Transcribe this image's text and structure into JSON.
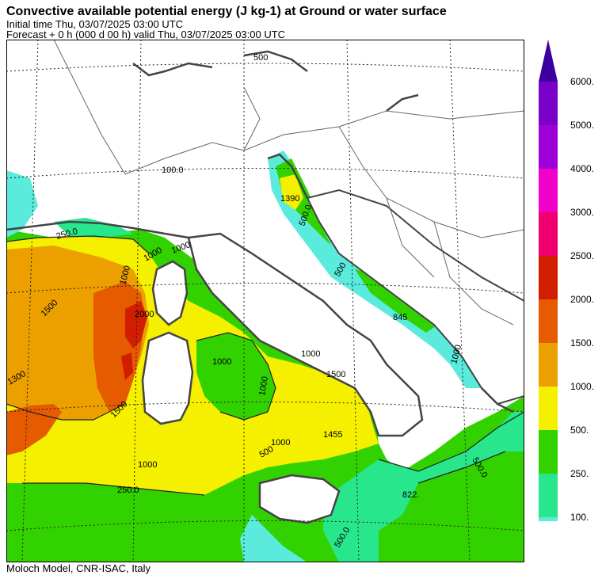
{
  "header": {
    "title": "Convective available potential energy (J kg-1) at Ground or water surface",
    "initial": "Initial time  Thu, 03/07/2025  03:00 UTC",
    "forecast": "Forecast +   0 h  (000 d 00 h)  valid Thu, 03/07/2025 03:00 UTC"
  },
  "footer": "Moloch Model, CNR-ISAC, Italy",
  "legend": {
    "levels": [
      {
        "label": "6000.",
        "color": "#7B00C8"
      },
      {
        "label": "5000.",
        "color": "#A000D8"
      },
      {
        "label": "4000.",
        "color": "#F000C8"
      },
      {
        "label": "3000.",
        "color": "#F0006E"
      },
      {
        "label": "2500.",
        "color": "#D21E00"
      },
      {
        "label": "2000.",
        "color": "#E65A00"
      },
      {
        "label": "1500.",
        "color": "#EBA000"
      },
      {
        "label": "1000.",
        "color": "#F5F000"
      },
      {
        "label": "500.",
        "color": "#32D200"
      },
      {
        "label": "250.",
        "color": "#28E68C"
      },
      {
        "label": "100.",
        "color": "#5AEBDC"
      }
    ],
    "top_color": "#3C00A0"
  },
  "map_labels": [
    "500",
    "100.0",
    "1390",
    "500.0",
    "250.0",
    "500",
    "1000",
    "1000",
    "845",
    "1000",
    "1500",
    "1000",
    "2000",
    "1000",
    "1000",
    "1500",
    "1300",
    "1500",
    "1000",
    "1455",
    "500",
    "1000",
    "250.0",
    "1000",
    "500.0",
    "822.",
    "500.0"
  ]
}
